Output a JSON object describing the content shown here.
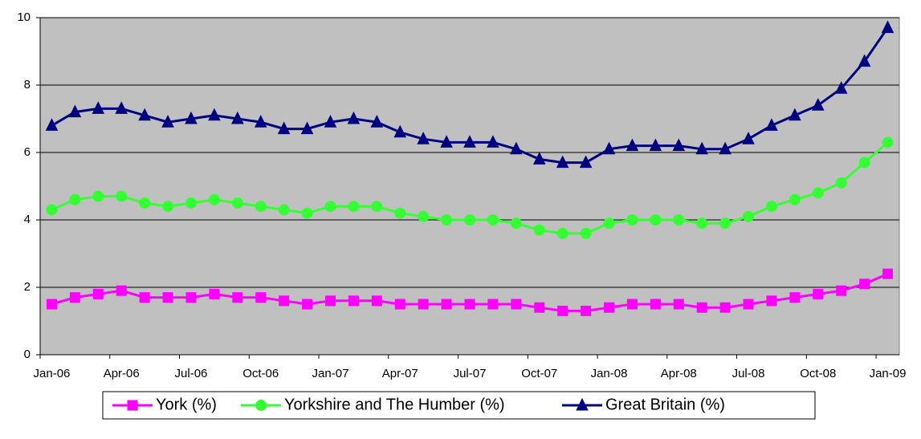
{
  "chart_data": {
    "type": "line",
    "categories": [
      "Jan-06",
      null,
      null,
      "Apr-06",
      null,
      null,
      "Jul-06",
      null,
      null,
      "Oct-06",
      null,
      null,
      "Jan-07",
      null,
      null,
      "Apr-07",
      null,
      null,
      "Jul-07",
      null,
      null,
      "Oct-07",
      null,
      null,
      "Jan-08",
      null,
      null,
      "Apr-08",
      null,
      null,
      "Jul-08",
      null,
      null,
      "Oct-08",
      null,
      null,
      "Jan-09"
    ],
    "series": [
      {
        "name": "York (%)",
        "color": "#ff00ff",
        "marker": "square",
        "values": [
          1.5,
          1.7,
          1.8,
          1.9,
          1.7,
          1.7,
          1.7,
          1.8,
          1.7,
          1.7,
          1.6,
          1.5,
          1.6,
          1.6,
          1.6,
          1.5,
          1.5,
          1.5,
          1.5,
          1.5,
          1.5,
          1.4,
          1.3,
          1.3,
          1.4,
          1.5,
          1.5,
          1.5,
          1.4,
          1.4,
          1.5,
          1.6,
          1.7,
          1.8,
          1.9,
          2.1,
          2.4
        ]
      },
      {
        "name": "Yorkshire and The Humber (%)",
        "color": "#33ff33",
        "marker": "circle",
        "values": [
          4.3,
          4.6,
          4.7,
          4.7,
          4.5,
          4.4,
          4.5,
          4.6,
          4.5,
          4.4,
          4.3,
          4.2,
          4.4,
          4.4,
          4.4,
          4.2,
          4.1,
          4.0,
          4.0,
          4.0,
          3.9,
          3.7,
          3.6,
          3.6,
          3.9,
          4.0,
          4.0,
          4.0,
          3.9,
          3.9,
          4.1,
          4.4,
          4.6,
          4.8,
          5.1,
          5.7,
          6.3
        ]
      },
      {
        "name": "Great Britain (%)",
        "color": "#000080",
        "marker": "triangle",
        "values": [
          6.8,
          7.2,
          7.3,
          7.3,
          7.1,
          6.9,
          7.0,
          7.1,
          7.0,
          6.9,
          6.7,
          6.7,
          6.9,
          7.0,
          6.9,
          6.6,
          6.4,
          6.3,
          6.3,
          6.3,
          6.1,
          5.8,
          5.7,
          5.7,
          6.1,
          6.2,
          6.2,
          6.2,
          6.1,
          6.1,
          6.4,
          6.8,
          7.1,
          7.4,
          7.9,
          8.7,
          9.7
        ]
      }
    ],
    "ylim": [
      0,
      10
    ],
    "yticks": [
      0,
      2,
      4,
      6,
      8,
      10
    ],
    "grid": true,
    "legend": "bottom"
  }
}
